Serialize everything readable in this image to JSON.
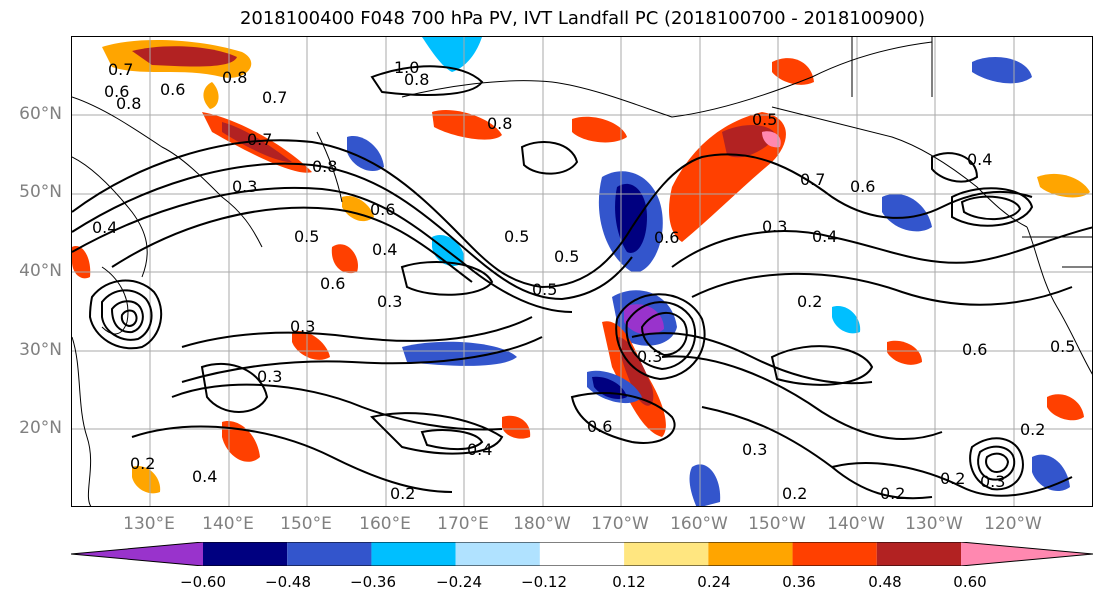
{
  "title": "2018100400 F048 700 hPa PV, IVT Landfall PC (2018100700 - 2018100900)",
  "lat_labels": [
    "60°N",
    "50°N",
    "40°N",
    "30°N",
    "20°N"
  ],
  "lon_labels": [
    "130°E",
    "140°E",
    "150°E",
    "160°E",
    "170°E",
    "180°W",
    "170°W",
    "160°W",
    "150°W",
    "140°W",
    "130°W",
    "120°W"
  ],
  "colorbar": {
    "ticks": [
      "−0.60",
      "−0.48",
      "−0.36",
      "−0.24",
      "−0.12",
      "0.12",
      "0.24",
      "0.36",
      "0.48",
      "0.60"
    ],
    "colors": [
      "#9933cc",
      "#000080",
      "#3355cc",
      "#00bfff",
      "#b0e2ff",
      "#ffffff",
      "#ffe680",
      "#ffa500",
      "#ff4000",
      "#b22222",
      "#ff88b0"
    ]
  },
  "contour_labels": [
    "0.7",
    "0.6",
    "0.8",
    "0.8",
    "0.7",
    "1.0",
    "0.8",
    "0.8",
    "0.7",
    "0.5",
    "0.8",
    "0.6",
    "0.7",
    "0.4",
    "0.3",
    "0.6",
    "0.4",
    "0.5",
    "0.5",
    "0.5",
    "0.6",
    "0.4",
    "0.5",
    "0.6",
    "0.3",
    "0.3",
    "0.2",
    "0.4",
    "0.3",
    "0.3",
    "0.3",
    "0.6",
    "0.5",
    "0.4",
    "0.6",
    "0.4",
    "0.2",
    "0.3",
    "0.2",
    "0.2",
    "0.2",
    "0.2",
    "0.3",
    "0.2",
    "0.6"
  ]
}
